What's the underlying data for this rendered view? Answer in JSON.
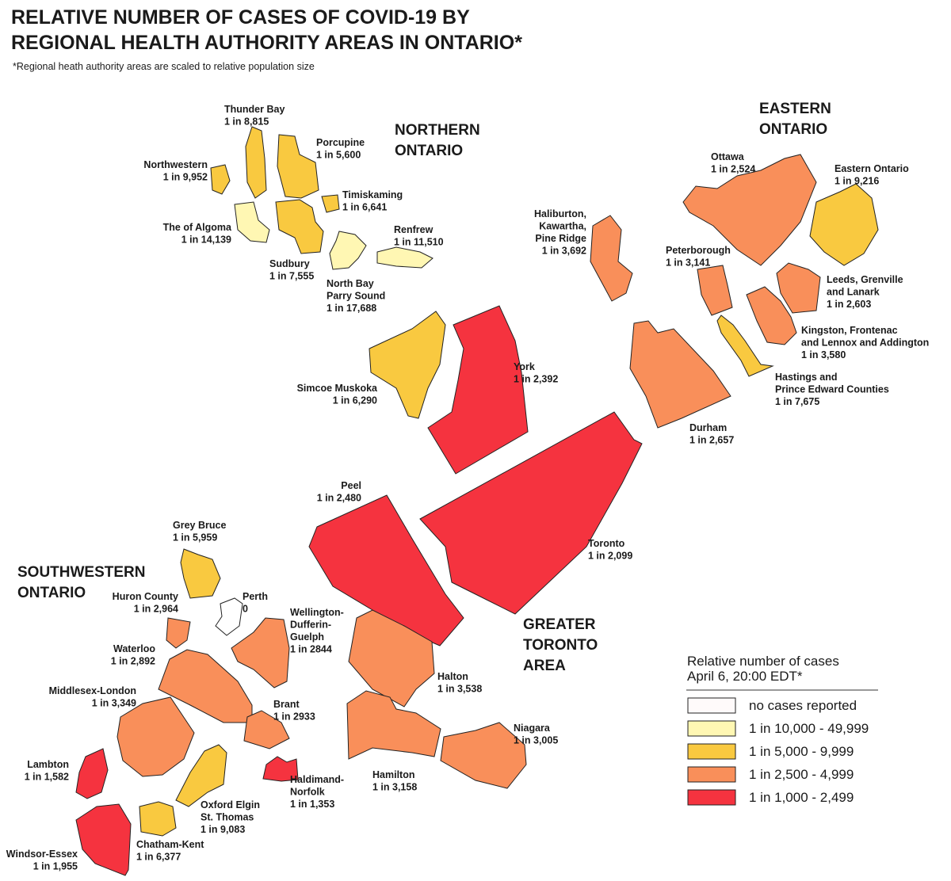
{
  "header": {
    "title": [
      "RELATIVE NUMBER OF CASES OF COVID-19 BY",
      "REGIONAL HEALTH AUTHORITY AREAS IN ONTARIO*"
    ],
    "subtitle": "*Regional heath authority areas are scaled to relative population size"
  },
  "areas": [
    {
      "lines": [
        "NORTHERN",
        "ONTARIO"
      ]
    },
    {
      "lines": [
        "EASTERN",
        "ONTARIO"
      ]
    },
    {
      "lines": [
        "SOUTHWESTERN",
        "ONTARIO"
      ]
    },
    {
      "lines": [
        "GREATER",
        "TORONTO",
        "AREA"
      ]
    }
  ],
  "regions": [
    {
      "name": [
        "Thunder Bay"
      ],
      "value": "1 in 8,815",
      "color": "#f9c940"
    },
    {
      "name": [
        "Porcupine"
      ],
      "value": "1 in 5,600",
      "color": "#f9c940"
    },
    {
      "name": [
        "Northwestern"
      ],
      "value": "1 in 9,952",
      "color": "#f9c940"
    },
    {
      "name": [
        "Timiskaming"
      ],
      "value": "1 in 6,641",
      "color": "#f9c940"
    },
    {
      "name": [
        "The  of Algoma"
      ],
      "value": "1 in 14,139",
      "color": "#fff7b3"
    },
    {
      "name": [
        "Sudbury"
      ],
      "value": "1 in 7,555",
      "color": "#f9c940"
    },
    {
      "name": [
        "Renfrew"
      ],
      "value": "1 in 11,510",
      "color": "#fff7b3"
    },
    {
      "name": [
        "North Bay",
        "Parry Sound"
      ],
      "value": "1 in 17,688",
      "color": "#fff7b3"
    },
    {
      "name": [
        "Simcoe Muskoka"
      ],
      "value": "1 in 6,290",
      "color": "#f9c940"
    },
    {
      "name": [
        "York"
      ],
      "value": "1 in 2,392",
      "color": "#f5333f"
    },
    {
      "name": [
        "Peel"
      ],
      "value": "1 in 2,480",
      "color": "#f5333f"
    },
    {
      "name": [
        "Toronto"
      ],
      "value": "1 in 2,099",
      "color": "#f5333f"
    },
    {
      "name": [
        "Haliburton,",
        "Kawartha,",
        "Pine Ridge"
      ],
      "value": "1 in 3,692",
      "color": "#f98f5a"
    },
    {
      "name": [
        "Peterborough"
      ],
      "value": "1 in 3,141",
      "color": "#f98f5a"
    },
    {
      "name": [
        "Ottawa"
      ],
      "value": "1 in 2,524",
      "color": "#f98f5a"
    },
    {
      "name": [
        "Eastern Ontario"
      ],
      "value": "1 in 9,216",
      "color": "#f9c940"
    },
    {
      "name": [
        "Leeds, Grenville",
        "and Lanark"
      ],
      "value": "1 in 2,603",
      "color": "#f98f5a"
    },
    {
      "name": [
        "Kingston, Frontenac",
        "and Lennox and Addington"
      ],
      "value": "1 in 3,580",
      "color": "#f98f5a"
    },
    {
      "name": [
        "Hastings and",
        "Prince Edward Counties"
      ],
      "value": "1 in 7,675",
      "color": "#f9c940"
    },
    {
      "name": [
        "Durham"
      ],
      "value": "1 in 2,657",
      "color": "#f98f5a"
    },
    {
      "name": [
        "Grey Bruce"
      ],
      "value": "1 in 5,959",
      "color": "#f9c940"
    },
    {
      "name": [
        "Huron County"
      ],
      "value": "1 in 2,964",
      "color": "#f98f5a"
    },
    {
      "name": [
        "Perth"
      ],
      "value": "0",
      "color": "#ffffff"
    },
    {
      "name": [
        "Wellington-",
        "Dufferin-",
        "Guelph"
      ],
      "value": "1 in 2844",
      "color": "#f98f5a"
    },
    {
      "name": [
        "Waterloo"
      ],
      "value": "1 in 2,892",
      "color": "#f98f5a"
    },
    {
      "name": [
        "Middlesex-London"
      ],
      "value": "1 in 3,349",
      "color": "#f98f5a"
    },
    {
      "name": [
        "Brant"
      ],
      "value": "1 in 2933",
      "color": "#f98f5a"
    },
    {
      "name": [
        "Lambton"
      ],
      "value": "1 in 1,582",
      "color": "#f5333f"
    },
    {
      "name": [
        "Haldimand-",
        "Norfolk"
      ],
      "value": "1 in 1,353",
      "color": "#f5333f"
    },
    {
      "name": [
        "Oxford Elgin",
        "St. Thomas"
      ],
      "value": "1 in 9,083",
      "color": "#f9c940"
    },
    {
      "name": [
        "Chatham-Kent"
      ],
      "value": "1 in 6,377",
      "color": "#f9c940"
    },
    {
      "name": [
        "Windsor-Essex"
      ],
      "value": "1 in 1,955",
      "color": "#f5333f"
    },
    {
      "name": [
        "Halton"
      ],
      "value": "1 in 3,538",
      "color": "#f98f5a"
    },
    {
      "name": [
        "Hamilton"
      ],
      "value": "1 in 3,158",
      "color": "#f98f5a"
    },
    {
      "name": [
        "Niagara"
      ],
      "value": "1 in 3,005",
      "color": "#f98f5a"
    }
  ],
  "legend": {
    "title": [
      "Relative number of cases",
      "April 6, 20:00 EDT*"
    ],
    "items": [
      {
        "label": "no cases reported",
        "color": "#fffafa"
      },
      {
        "label": "1 in 10,000 - 49,999",
        "color": "#fff7b3"
      },
      {
        "label": "1 in 5,000 - 9,999",
        "color": "#f9c940"
      },
      {
        "label": "1 in 2,500 - 4,999",
        "color": "#f98f5a"
      },
      {
        "label": "1 in 1,000 - 2,499",
        "color": "#f5333f"
      }
    ]
  }
}
